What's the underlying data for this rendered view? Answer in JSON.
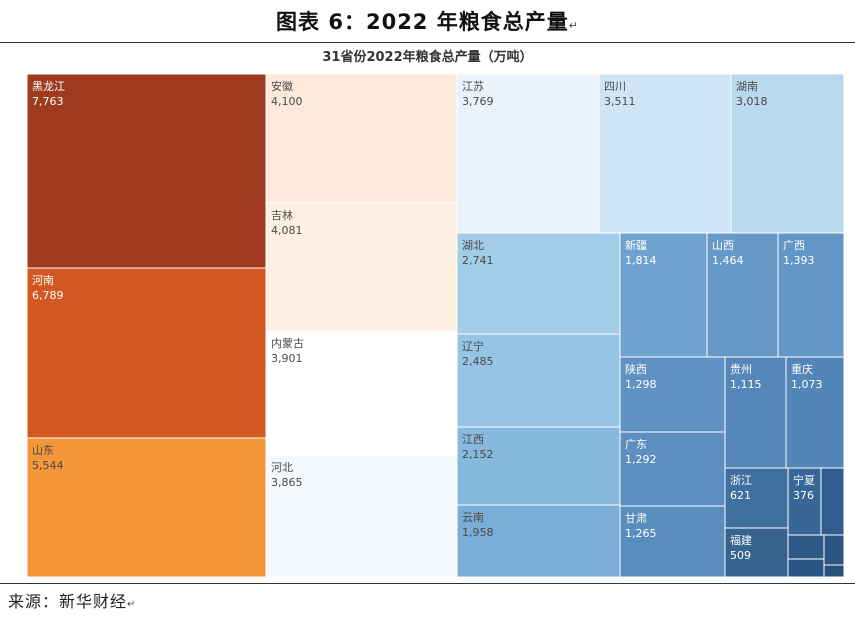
{
  "figure": {
    "title": "图表 6：2022 年粮食总产量",
    "paragraph_mark": "↵",
    "source": "来源：新华财经",
    "end_mark": "↵"
  },
  "chart_data": {
    "type": "treemap",
    "title": "31省份2022年粮食总产量（万吨）",
    "unit": "万吨",
    "groups": [
      {
        "color_family": "orange",
        "items": [
          {
            "name": "黑龙江",
            "value": 7763,
            "label": "7,763",
            "color": "#9e3b1f"
          },
          {
            "name": "河南",
            "value": 6789,
            "label": "6,789",
            "color": "#d15723"
          },
          {
            "name": "山东",
            "value": 5544,
            "label": "5,544",
            "color": "#f4963a"
          },
          {
            "name": "安徽",
            "value": 4100,
            "label": "4,100",
            "color": "#fdeadb"
          },
          {
            "name": "吉林",
            "value": 4081,
            "label": "4,081",
            "color": "#fdf0e3"
          },
          {
            "name": "内蒙古",
            "value": 3901,
            "label": "3,901",
            "color": "#ffffff"
          },
          {
            "name": "河北",
            "value": 3865,
            "label": "3,865",
            "color": "#f4f8fd"
          }
        ]
      },
      {
        "color_family": "blue",
        "items": [
          {
            "name": "江苏",
            "value": 3769,
            "label": "3,769",
            "color": "#eaf3fc"
          },
          {
            "name": "四川",
            "value": 3511,
            "label": "3,511",
            "color": "#cfe5f5"
          },
          {
            "name": "湖南",
            "value": 3018,
            "label": "3,018",
            "color": "#b9d9ee"
          },
          {
            "name": "湖北",
            "value": 2741,
            "label": "2,741",
            "color": "#a3cce8"
          },
          {
            "name": "辽宁",
            "value": 2485,
            "label": "2,485",
            "color": "#96c4e4"
          },
          {
            "name": "江西",
            "value": 2152,
            "label": "2,152",
            "color": "#87b8dd"
          },
          {
            "name": "云南",
            "value": 1958,
            "label": "1,958",
            "color": "#7aaed7"
          },
          {
            "name": "新疆",
            "value": 1814,
            "label": "1,814",
            "color": "#6fa3cf"
          },
          {
            "name": "山西",
            "value": 1464,
            "label": "1,464",
            "color": "#6699c8"
          },
          {
            "name": "广西",
            "value": 1393,
            "label": "1,393",
            "color": "#6196c5"
          },
          {
            "name": "陕西",
            "value": 1298,
            "label": "1,298",
            "color": "#5e92c2"
          },
          {
            "name": "广东",
            "value": 1292,
            "label": "1,292",
            "color": "#5c8fc0"
          },
          {
            "name": "甘肃",
            "value": 1265,
            "label": "1,265",
            "color": "#598dbe"
          },
          {
            "name": "贵州",
            "value": 1115,
            "label": "1,115",
            "color": "#5587ba"
          },
          {
            "name": "重庆",
            "value": 1073,
            "label": "1,073",
            "color": "#5285b8"
          },
          {
            "name": "浙江",
            "value": 621,
            "label": "621",
            "color": "#3f6f9f"
          },
          {
            "name": "宁夏",
            "value": 376,
            "label": "376",
            "color": "#386797"
          },
          {
            "name": "福建",
            "value": 509,
            "label": "509",
            "color": "#36638f"
          },
          {
            "name": "",
            "value": 291,
            "label": "",
            "color": "#2f5d8d"
          },
          {
            "name": "",
            "value": 107,
            "label": "",
            "color": "#2d5987"
          },
          {
            "name": "",
            "value": 95,
            "label": "",
            "color": "#2b5684"
          },
          {
            "name": "",
            "value": 62,
            "label": "",
            "color": "#2a5481"
          },
          {
            "name": "",
            "value": 30,
            "label": "",
            "color": "#28527e"
          }
        ]
      }
    ]
  }
}
